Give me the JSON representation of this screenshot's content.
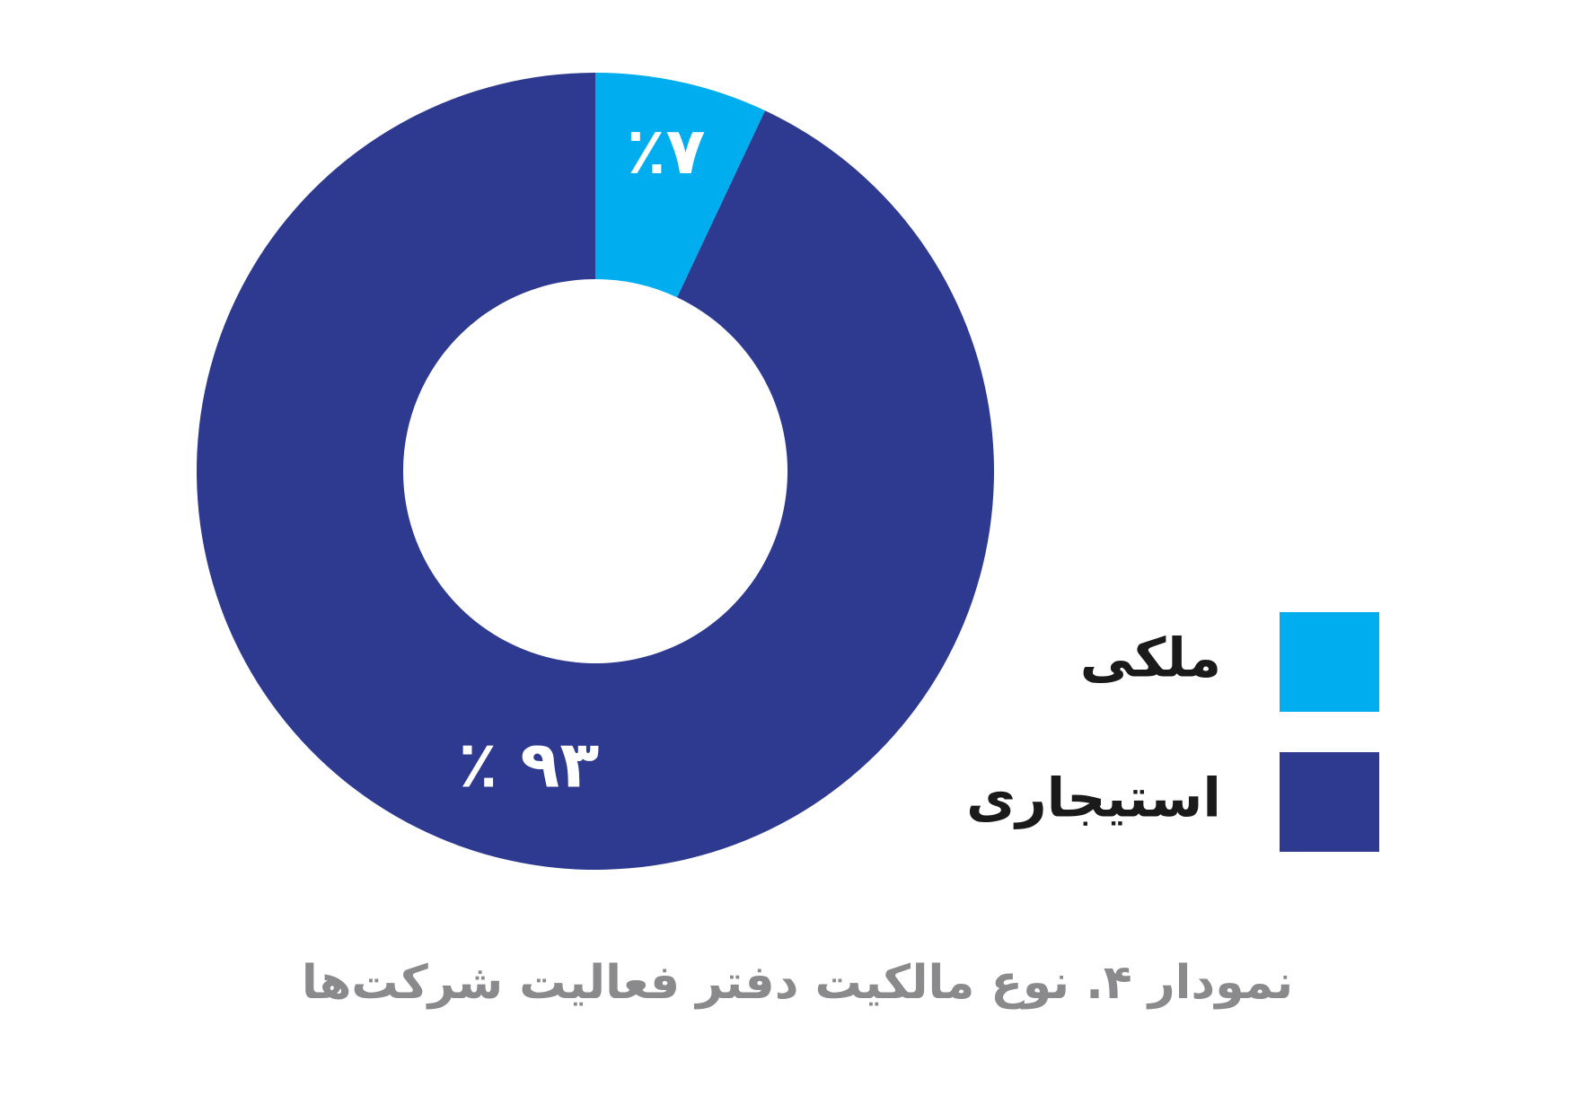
{
  "chart_data": {
    "type": "donut",
    "title": "نمودار ۴. نوع مالکیت دفتر فعالیت شرکت‌ها",
    "categories": [
      "ملکی",
      "استیجاری"
    ],
    "values": [
      7,
      93
    ],
    "value_labels": [
      "٪۷",
      "٪ ۹۳"
    ],
    "colors": [
      "#00aeef",
      "#2e3a8f"
    ]
  }
}
